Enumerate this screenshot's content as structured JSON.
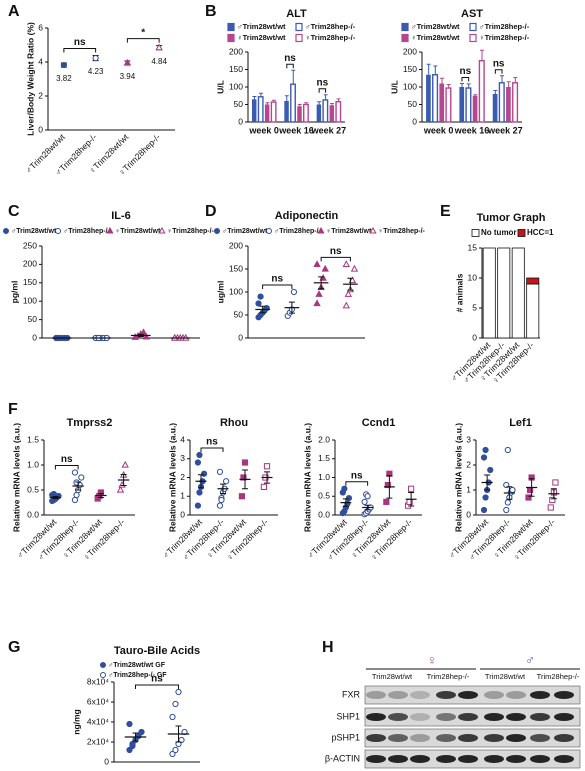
{
  "chart_data": [
    {
      "type": "dot",
      "panel_label": "A",
      "ylabel": "Liver/Body Weight Ratio (%)",
      "ylim": [
        0,
        6
      ],
      "yticks": [
        0,
        2,
        4,
        6
      ],
      "name_position": "axis",
      "mean_labels": true,
      "groups": [
        {
          "name": "♂Trim28wt/wt",
          "color": "#2f4f9e",
          "marker": "circle",
          "filled": true,
          "mean": 3.82,
          "sem": 0.12
        },
        {
          "name": "♂Trim28hep-/-",
          "color": "#2f4f9e",
          "marker": "circle",
          "filled": false,
          "mean": 4.23,
          "sem": 0.15
        },
        {
          "name": "♀Trim28wt/wt",
          "color": "#a8377f",
          "marker": "triangle",
          "filled": true,
          "mean": 3.94,
          "sem": 0.12
        },
        {
          "name": "♀Trim28hep-/-",
          "color": "#a8377f",
          "marker": "triangle",
          "filled": false,
          "mean": 4.84,
          "sem": 0.12
        }
      ],
      "annotations": [
        {
          "text": "ns",
          "between": [
            0,
            1
          ]
        },
        {
          "text": "*",
          "between": [
            2,
            3
          ]
        }
      ]
    },
    {
      "type": "bar",
      "panel_label": "B",
      "title": "ALT",
      "ylabel": "U/L",
      "categories": [
        "week 0",
        "week 16",
        "week 27"
      ],
      "ylim": [
        0,
        200
      ],
      "yticks": [
        0,
        50,
        100,
        150,
        200
      ],
      "series": [
        {
          "name": "♂Trim28wt/wt",
          "color": "#3a5bb0",
          "filled": true,
          "values": [
            65,
            60,
            50
          ],
          "errors": [
            8,
            15,
            8
          ]
        },
        {
          "name": "♂Trim28hep-/-",
          "color": "#3a5bb0",
          "filled": false,
          "values": [
            72,
            108,
            63
          ],
          "errors": [
            10,
            40,
            15
          ]
        },
        {
          "name": "♀Trim28wt/wt",
          "color": "#b5468f",
          "filled": true,
          "values": [
            50,
            45,
            48
          ],
          "errors": [
            5,
            5,
            5
          ]
        },
        {
          "name": "♀Trim28hep-/-",
          "color": "#b5468f",
          "filled": false,
          "values": [
            57,
            50,
            58
          ],
          "errors": [
            5,
            5,
            8
          ]
        }
      ],
      "annotations": [
        {
          "text": "ns",
          "category": 1,
          "between": [
            0,
            1
          ]
        },
        {
          "text": "ns",
          "category": 2,
          "between": [
            0,
            1
          ]
        }
      ]
    },
    {
      "type": "bar",
      "title": "AST",
      "ylabel": "U/L",
      "categories": [
        "week 0",
        "week 16",
        "week 27"
      ],
      "ylim": [
        0,
        200
      ],
      "yticks": [
        0,
        50,
        100,
        150,
        200
      ],
      "series": [
        {
          "name": "♂Trim28wt/wt",
          "color": "#3a5bb0",
          "filled": true,
          "values": [
            135,
            100,
            80
          ],
          "errors": [
            30,
            10,
            10
          ]
        },
        {
          "name": "♂Trim28hep-/-",
          "color": "#3a5bb0",
          "filled": false,
          "values": [
            135,
            97,
            112
          ],
          "errors": [
            25,
            12,
            20
          ]
        },
        {
          "name": "♀Trim28wt/wt",
          "color": "#b5468f",
          "filled": true,
          "values": [
            110,
            75,
            100
          ],
          "errors": [
            15,
            3,
            15
          ]
        },
        {
          "name": "♀Trim28hep-/-",
          "color": "#b5468f",
          "filled": false,
          "values": [
            97,
            175,
            112
          ],
          "errors": [
            10,
            30,
            15
          ]
        }
      ],
      "annotations": [
        {
          "text": "ns",
          "category": 1,
          "between": [
            0,
            1
          ]
        },
        {
          "text": "ns",
          "category": 2,
          "between": [
            0,
            1
          ]
        }
      ]
    },
    {
      "type": "dot",
      "panel_label": "C",
      "title": "IL-6",
      "ylabel": "pg/ml",
      "ylim": [
        0,
        250
      ],
      "yticks": [
        0,
        50,
        100,
        150,
        200,
        250
      ],
      "name_position": "legend",
      "mean_labels": false,
      "groups": [
        {
          "name": "♂Trim28wt/wt",
          "color": "#2f4f9e",
          "marker": "circle",
          "filled": true,
          "points": [
            0,
            0,
            0,
            0,
            0,
            0,
            0
          ],
          "mean": 0,
          "sem": 0
        },
        {
          "name": "♂Trim28hep-/-",
          "color": "#2f4f9e",
          "marker": "circle",
          "filled": false,
          "points": [
            0,
            0,
            0,
            0,
            0,
            0,
            0
          ],
          "mean": 0,
          "sem": 0
        },
        {
          "name": "♀Trim28wt/wt",
          "color": "#a8377f",
          "marker": "triangle",
          "filled": true,
          "points": [
            2,
            5,
            10,
            15,
            3
          ],
          "mean": 7,
          "sem": 3
        },
        {
          "name": "♀Trim28hep-/-",
          "color": "#a8377f",
          "marker": "triangle",
          "filled": false,
          "points": [
            0,
            0,
            0,
            0,
            0,
            0
          ],
          "mean": 0,
          "sem": 0
        }
      ],
      "annotations": []
    },
    {
      "type": "dot",
      "panel_label": "D",
      "title": "Adiponectin",
      "ylabel": "ug/ml",
      "ylim": [
        0,
        200
      ],
      "yticks": [
        0,
        50,
        100,
        150,
        200
      ],
      "name_position": "legend",
      "mean_labels": false,
      "groups": [
        {
          "name": "♂Trim28wt/wt",
          "color": "#2f4f9e",
          "marker": "circle",
          "filled": true,
          "points": [
            45,
            50,
            55,
            60,
            65,
            75,
            90
          ],
          "mean": 62,
          "sem": 7
        },
        {
          "name": "♂Trim28hep-/-",
          "color": "#2f4f9e",
          "marker": "circle",
          "filled": false,
          "points": [
            48,
            55,
            62,
            100
          ],
          "mean": 66,
          "sem": 12
        },
        {
          "name": "♀Trim28wt/wt",
          "color": "#a8377f",
          "marker": "triangle",
          "filled": true,
          "points": [
            75,
            95,
            110,
            130,
            150,
            160
          ],
          "mean": 120,
          "sem": 13
        },
        {
          "name": "♀Trim28hep-/-",
          "color": "#a8377f",
          "marker": "triangle",
          "filled": false,
          "points": [
            70,
            95,
            105,
            125,
            150,
            160
          ],
          "mean": 117,
          "sem": 13
        }
      ],
      "annotations": [
        {
          "text": "ns",
          "between": [
            0,
            1
          ]
        },
        {
          "text": "ns",
          "between": [
            2,
            3
          ]
        }
      ]
    },
    {
      "type": "stacked_bar",
      "panel_label": "E",
      "title": "Tumor Graph",
      "ylabel": "# animals",
      "categories": [
        "♂Trim28wt/wt",
        "♂Trim28hep-/-",
        "♀Trim28wt/wt",
        "♀Trim28hep-/-"
      ],
      "ylim": [
        0,
        15
      ],
      "yticks": [
        0,
        5,
        10,
        15
      ],
      "series": [
        {
          "name": "No tumor",
          "color": "#ffffff",
          "values": [
            15,
            15,
            15,
            9
          ]
        },
        {
          "name": "HCC=1",
          "color": "#c0161c",
          "values": [
            0,
            0,
            0,
            1
          ]
        }
      ]
    },
    {
      "type": "dot",
      "panel_label": "F",
      "title": "Tmprss2",
      "ylabel": "Relative mRNA levels (a.u.)",
      "ylim": [
        0,
        1.5
      ],
      "yticks": [
        {
          "value": 0,
          "label": "0.0"
        },
        0.5,
        {
          "value": 1,
          "label": "1.0"
        },
        1.5
      ],
      "name_position": "axis",
      "mean_labels": false,
      "groups": [
        {
          "name": "♂Trim28wt/wt",
          "color": "#2f4f9e",
          "marker": "circle",
          "filled": true,
          "points": [
            0.28,
            0.3,
            0.32,
            0.35,
            0.38,
            0.4,
            0.42
          ],
          "mean": 0.35,
          "sem": 0.02
        },
        {
          "name": "♂Trim28hep-/-",
          "color": "#2f4f9e",
          "marker": "circle",
          "filled": false,
          "points": [
            0.3,
            0.4,
            0.5,
            0.6,
            0.75,
            0.85,
            0.65
          ],
          "mean": 0.58,
          "sem": 0.08
        },
        {
          "name": "♀Trim28wt/wt",
          "color": "#a8377f",
          "marker": "square",
          "filled": true,
          "points": [
            0.33,
            0.38,
            0.45
          ],
          "mean": 0.39,
          "sem": 0.04
        },
        {
          "name": "♀Trim28hep-/-",
          "color": "#a8377f",
          "marker": "triangle",
          "filled": false,
          "points": [
            0.5,
            0.6,
            0.8,
            1.0
          ],
          "mean": 0.7,
          "sem": 0.11
        }
      ],
      "annotations": [
        {
          "text": "ns",
          "between": [
            0,
            1
          ]
        }
      ]
    },
    {
      "type": "dot",
      "title": "Rhou",
      "ylabel": "Relative mRNA levels (a.u.)",
      "ylim": [
        0,
        4
      ],
      "yticks": [
        0,
        1,
        2,
        3,
        4
      ],
      "name_position": "axis",
      "mean_labels": false,
      "groups": [
        {
          "name": "♂Trim28wt/wt",
          "color": "#2f4f9e",
          "marker": "circle",
          "filled": true,
          "points": [
            0.5,
            1.2,
            1.5,
            1.8,
            2.2,
            2.8,
            3.2
          ],
          "mean": 1.8,
          "sem": 0.35
        },
        {
          "name": "♂Trim28hep-/-",
          "color": "#2f4f9e",
          "marker": "circle",
          "filled": false,
          "points": [
            0.5,
            0.9,
            1.2,
            1.4,
            1.8,
            2.3,
            0.8
          ],
          "mean": 1.4,
          "sem": 0.25
        },
        {
          "name": "♀Trim28wt/wt",
          "color": "#a8377f",
          "marker": "square",
          "filled": true,
          "points": [
            1.0,
            2.0,
            2.8
          ],
          "mean": 1.9,
          "sem": 0.5
        },
        {
          "name": "♀Trim28hep-/-",
          "color": "#a8377f",
          "marker": "square",
          "filled": false,
          "points": [
            1.5,
            2.0,
            2.6
          ],
          "mean": 2.0,
          "sem": 0.3
        }
      ],
      "annotations": [
        {
          "text": "ns",
          "between": [
            0,
            1
          ]
        }
      ]
    },
    {
      "type": "dot",
      "title": "Ccnd1",
      "ylabel": "Relative mRNA levels (a.u.)",
      "ylim": [
        0,
        2
      ],
      "yticks": [
        {
          "value": 0,
          "label": "0.0"
        },
        0.5,
        {
          "value": 1,
          "label": "1.0"
        },
        1.5,
        {
          "value": 2,
          "label": "2.0"
        }
      ],
      "name_position": "axis",
      "mean_labels": false,
      "groups": [
        {
          "name": "♂Trim28wt/wt",
          "color": "#2f4f9e",
          "marker": "circle",
          "filled": true,
          "points": [
            0.05,
            0.1,
            0.2,
            0.3,
            0.45,
            0.6,
            0.7
          ],
          "mean": 0.33,
          "sem": 0.1
        },
        {
          "name": "♂Trim28hep-/-",
          "color": "#2f4f9e",
          "marker": "circle",
          "filled": false,
          "points": [
            0.02,
            0.05,
            0.1,
            0.15,
            0.2,
            0.35,
            0.55,
            0.5
          ],
          "mean": 0.2,
          "sem": 0.06
        },
        {
          "name": "♀Trim28wt/wt",
          "color": "#a8377f",
          "marker": "square",
          "filled": true,
          "points": [
            0.35,
            0.8,
            1.1
          ],
          "mean": 0.75,
          "sem": 0.3
        },
        {
          "name": "♀Trim28hep-/-",
          "color": "#a8377f",
          "marker": "square",
          "filled": false,
          "points": [
            0.25,
            0.35,
            0.7
          ],
          "mean": 0.42,
          "sem": 0.18
        }
      ],
      "annotations": [
        {
          "text": "ns",
          "between": [
            0,
            1
          ]
        }
      ]
    },
    {
      "type": "dot",
      "title": "Lef1",
      "ylabel": "Relative mRNA levels (a.u.)",
      "ylim": [
        0,
        3
      ],
      "yticks": [
        0,
        1,
        2,
        3
      ],
      "name_position": "axis",
      "mean_labels": false,
      "groups": [
        {
          "name": "♂Trim28wt/wt",
          "color": "#2f4f9e",
          "marker": "circle",
          "filled": true,
          "points": [
            0.2,
            0.7,
            1.0,
            1.3,
            1.8,
            2.3,
            2.6
          ],
          "mean": 1.3,
          "sem": 0.3
        },
        {
          "name": "♂Trim28hep-/-",
          "color": "#2f4f9e",
          "marker": "circle",
          "filled": false,
          "points": [
            0.2,
            0.5,
            0.7,
            0.9,
            1.0,
            1.2,
            2.6
          ],
          "mean": 0.88,
          "sem": 0.25
        },
        {
          "name": "♀Trim28wt/wt",
          "color": "#a8377f",
          "marker": "square",
          "filled": true,
          "points": [
            0.7,
            1.0,
            1.5
          ],
          "mean": 1.1,
          "sem": 0.35
        },
        {
          "name": "♀Trim28hep-/-",
          "color": "#a8377f",
          "marker": "square",
          "filled": false,
          "points": [
            0.3,
            0.6,
            0.9,
            1.3
          ],
          "mean": 0.85,
          "sem": 0.2
        }
      ],
      "annotations": []
    },
    {
      "type": "dot",
      "panel_label": "G",
      "title": "Tauro-Bile Acids",
      "ylabel": "ng/mg",
      "ylim": [
        0,
        80000
      ],
      "yticks": [
        0,
        {
          "value": 20000,
          "label": "2x10⁴"
        },
        {
          "value": 40000,
          "label": "4x10⁴"
        },
        {
          "value": 60000,
          "label": "6x10⁴"
        },
        {
          "value": 80000,
          "label": "8x10⁴"
        }
      ],
      "name_position": "legend",
      "mean_labels": false,
      "groups": [
        {
          "name": "♂Trim28wt/wt GF",
          "color": "#2f4f9e",
          "marker": "circle",
          "filled": true,
          "points": [
            12000,
            18000,
            22000,
            26000,
            30000,
            38000,
            16000
          ],
          "mean": 25000,
          "sem": 4000
        },
        {
          "name": "♂Trim28hep-/- GF",
          "color": "#2f4f9e",
          "marker": "circle",
          "filled": false,
          "points": [
            8000,
            12000,
            18000,
            22000,
            30000,
            45000,
            58000,
            70000
          ],
          "mean": 28000,
          "sem": 8000
        }
      ],
      "annotations": [
        {
          "text": "ns",
          "between": [
            0,
            1
          ]
        }
      ]
    }
  ],
  "blot": {
    "panel_label": "H",
    "sexes": [
      "♀",
      "♂"
    ],
    "columns": [
      "Trim28wt/wt",
      "Trim28hep-/-",
      "Trim28wt/wt",
      "Trim28hep-/-"
    ],
    "rows": [
      "FXR",
      "SHP1",
      "pSHP1",
      "β-ACTIN"
    ]
  }
}
